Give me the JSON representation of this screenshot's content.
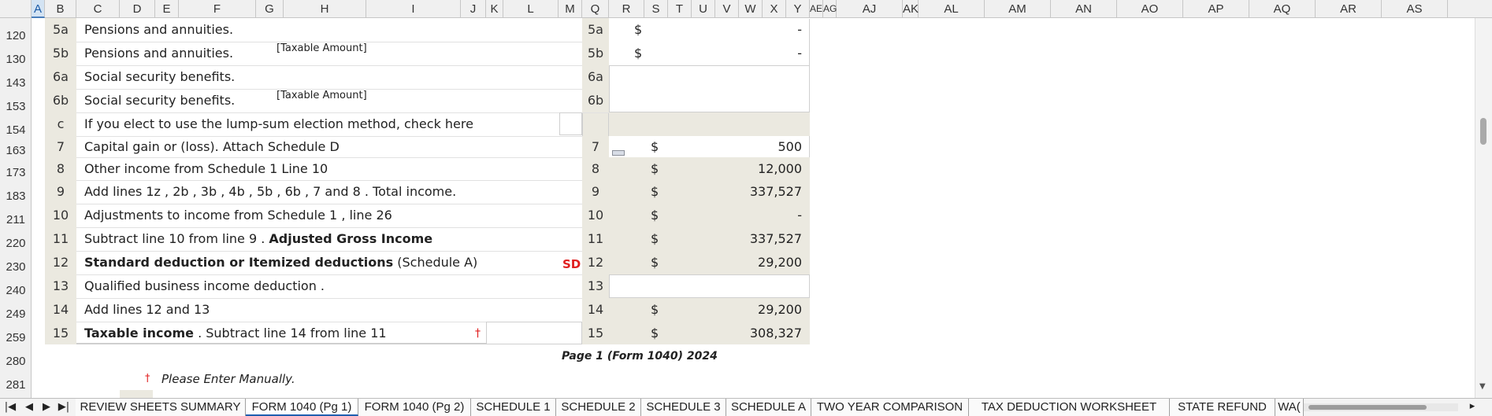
{
  "columns": [
    "A",
    "B",
    "C",
    "D",
    "E",
    "F",
    "G",
    "H",
    "I",
    "J",
    "K",
    "L",
    "M",
    "Q",
    "R",
    "S",
    "T",
    "U",
    "V",
    "W",
    "X",
    "Y",
    "AE",
    "AG",
    "AJ",
    "AK",
    "AL",
    "AM",
    "AN",
    "AO",
    "AP",
    "AQ",
    "AR",
    "AS"
  ],
  "rows": [
    "120",
    "130",
    "143",
    "153",
    "154",
    "163",
    "173",
    "183",
    "211",
    "220",
    "230",
    "240",
    "249",
    "259",
    "280",
    "281"
  ],
  "form": {
    "lines": [
      {
        "num": "5a",
        "label": "Pensions and annuities.",
        "note": "",
        "ref": "5a",
        "dollar": "$",
        "value": "-"
      },
      {
        "num": "5b",
        "label": "Pensions and annuities.",
        "note": "[Taxable Amount]",
        "ref": "5b",
        "dollar": "$",
        "value": "-"
      },
      {
        "num": "6a",
        "label": "Social security benefits.",
        "note": "",
        "ref": "6a",
        "dollar": "",
        "value": ""
      },
      {
        "num": "6b",
        "label": "Social security benefits.",
        "note": "[Taxable Amount]",
        "ref": "6b",
        "dollar": "",
        "value": ""
      },
      {
        "num": "c",
        "label": "If you elect to use the lump-sum election method, check here",
        "note": "",
        "ref": "",
        "dollar": "",
        "value": ""
      },
      {
        "num": "7",
        "label": "Capital gain or (loss). Attach Schedule D",
        "note": "",
        "ref": "7",
        "dollar": "$",
        "value": "500"
      },
      {
        "num": "8",
        "label": "Other income from Schedule 1 Line 10",
        "note": "",
        "ref": "8",
        "dollar": "$",
        "value": "12,000"
      },
      {
        "num": "9",
        "label": "Add lines 1z , 2b , 3b , 4b , 5b , 6b , 7 and 8 . Total income.",
        "note": "",
        "ref": "9",
        "dollar": "$",
        "value": "337,527"
      },
      {
        "num": "10",
        "label": "Adjustments to income from Schedule 1 , line 26",
        "note": "",
        "ref": "10",
        "dollar": "$",
        "value": "-"
      },
      {
        "num": "11",
        "label": "Subtract line 10 from line 9 . ",
        "label_bold": "Adjusted Gross Income",
        "ref": "11",
        "dollar": "$",
        "value": "337,527"
      },
      {
        "num": "12",
        "label_bold": "Standard deduction or Itemized deductions",
        "label": " (Schedule A)",
        "flag": "SD",
        "ref": "12",
        "dollar": "$",
        "value": "29,200"
      },
      {
        "num": "13",
        "label": "Qualified business income deduction .",
        "note": "",
        "ref": "13",
        "dollar": "",
        "value": ""
      },
      {
        "num": "14",
        "label": "Add lines 12 and 13",
        "note": "",
        "ref": "14",
        "dollar": "$",
        "value": "29,200"
      },
      {
        "num": "15",
        "label_bold": "Taxable income",
        "label": " . Subtract line 14 from line 11",
        "flag": "†",
        "ref": "15",
        "dollar": "$",
        "value": "308,327"
      }
    ],
    "footer": "Page 1 (Form 1040) 2024",
    "manual_note": "Please Enter Manually.",
    "manual_symbol": "†"
  },
  "tabs": [
    "REVIEW SHEETS SUMMARY",
    "FORM 1040 (Pg 1)",
    "FORM 1040 (Pg 2)",
    "SCHEDULE 1",
    "SCHEDULE 2",
    "SCHEDULE 3",
    "SCHEDULE A",
    "TWO YEAR COMPARISON",
    "TAX DEDUCTION WORKSHEET",
    "STATE REFUND",
    "WA("
  ],
  "active_tab": "FORM 1040 (Pg 1)",
  "colors": {
    "cell_gray": "#ebe9e0",
    "flag_red": "#e02020",
    "tab_active_line": "#1f5fb0"
  }
}
